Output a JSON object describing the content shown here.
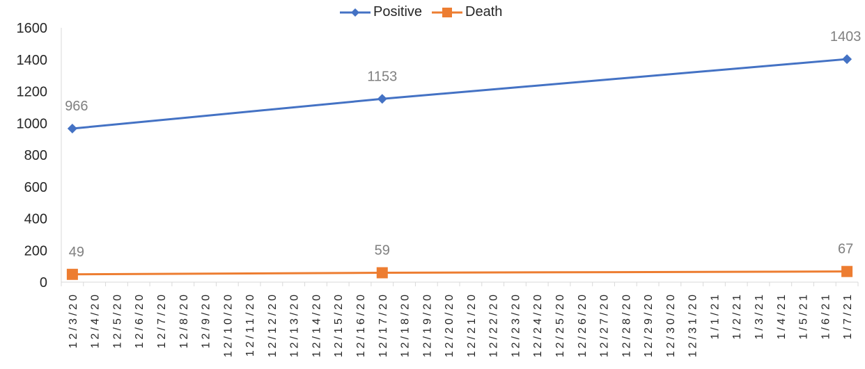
{
  "chart_data": {
    "type": "line",
    "title": "",
    "xlabel": "",
    "ylabel": "",
    "ylim": [
      0,
      1600
    ],
    "yticks": [
      0,
      200,
      400,
      600,
      800,
      1000,
      1200,
      1400,
      1600
    ],
    "categories": [
      "12/3/20",
      "12/4/20",
      "12/5/20",
      "12/6/20",
      "12/7/20",
      "12/8/20",
      "12/9/20",
      "12/10/20",
      "12/11/20",
      "12/12/20",
      "12/13/20",
      "12/14/20",
      "12/15/20",
      "12/16/20",
      "12/17/20",
      "12/18/20",
      "12/19/20",
      "12/20/20",
      "12/21/20",
      "12/22/20",
      "12/23/20",
      "12/24/20",
      "12/25/20",
      "12/26/20",
      "12/27/20",
      "12/28/20",
      "12/29/20",
      "12/30/20",
      "12/31/20",
      "1/1/21",
      "1/2/21",
      "1/3/21",
      "1/4/21",
      "1/5/21",
      "1/6/21",
      "1/7/21"
    ],
    "series": [
      {
        "name": "Positive",
        "color": "#4472C4",
        "marker": "diamond",
        "points": [
          {
            "x": "12/3/20",
            "y": 966
          },
          {
            "x": "12/17/20",
            "y": 1153
          },
          {
            "x": "1/7/21",
            "y": 1403
          }
        ],
        "labels": [
          "966",
          "1153",
          "1403"
        ]
      },
      {
        "name": "Death",
        "color": "#ED7D31",
        "marker": "square",
        "points": [
          {
            "x": "12/3/20",
            "y": 49
          },
          {
            "x": "12/17/20",
            "y": 59
          },
          {
            "x": "1/7/21",
            "y": 67
          }
        ],
        "labels": [
          "49",
          "59",
          "67"
        ]
      }
    ],
    "grid": false,
    "legend_position": "top",
    "data_label_color": "#808080",
    "axis_color": "#D9D9D9",
    "text_color": "#262626"
  }
}
